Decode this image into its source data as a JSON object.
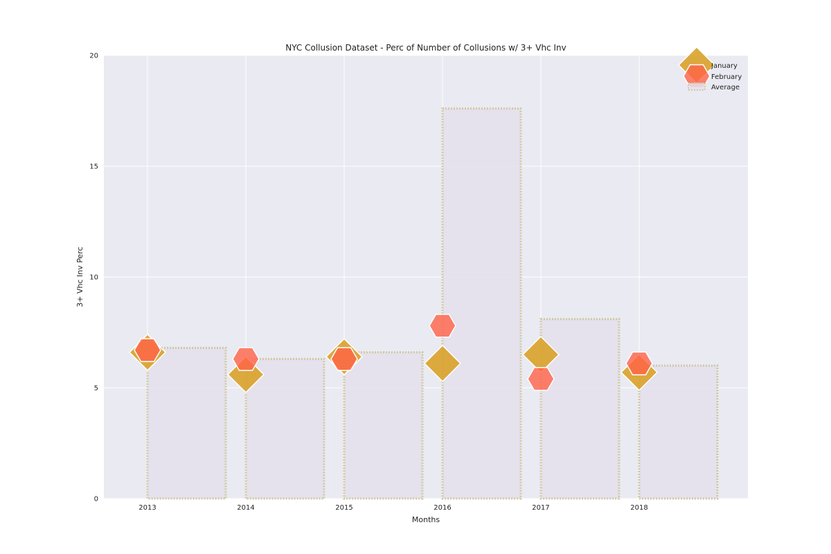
{
  "chart_data": {
    "type": "bar",
    "title": "NYC Collusion Dataset - Perc of Number of Collusions w/ 3+ Vhc Inv",
    "xlabel": "Months",
    "ylabel": "3+ Vhc Inv Perc",
    "categories": [
      "2013",
      "2014",
      "2015",
      "2016",
      "2017",
      "2018"
    ],
    "ylim": [
      0,
      20
    ],
    "yticks": [
      0,
      5,
      10,
      15,
      20
    ],
    "grid": true,
    "legend_position": "top-right",
    "series": [
      {
        "name": "January",
        "kind": "scatter",
        "marker": "diamond",
        "color": "#d9a22a",
        "values": [
          6.6,
          5.6,
          6.4,
          6.1,
          6.5,
          5.7
        ]
      },
      {
        "name": "February",
        "kind": "scatter",
        "marker": "hexagon",
        "color": "#ff6347",
        "values": [
          6.7,
          6.3,
          6.3,
          7.8,
          5.4,
          6.1
        ]
      },
      {
        "name": "Average",
        "kind": "bar",
        "color": "#e4dfec",
        "edge_color": "#cfc9a0",
        "values": [
          6.8,
          6.3,
          6.6,
          17.6,
          8.1,
          6.0
        ]
      }
    ]
  }
}
